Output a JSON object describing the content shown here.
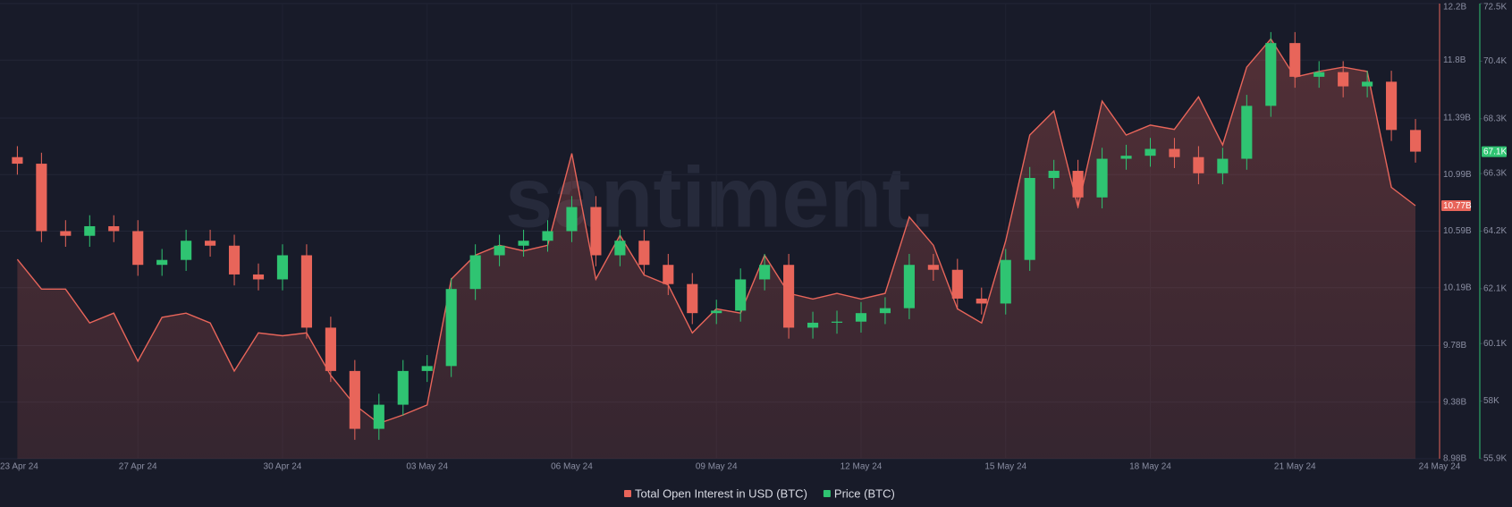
{
  "chart_data": {
    "type": "combo",
    "watermark": "santiment.",
    "grid": true,
    "x": [
      1.5,
      2,
      2.5,
      3,
      3.5,
      4,
      4.5,
      5,
      5.5,
      6,
      6.5,
      7,
      7.5,
      8,
      8.5,
      9,
      9.5,
      10,
      10.5,
      11,
      11.5,
      12,
      12.5,
      13,
      13.5,
      14,
      14.5,
      15,
      15.5,
      16,
      16.5,
      17,
      17.5,
      18,
      18.5,
      19,
      19.5,
      20,
      20.5,
      21,
      21.5,
      22,
      22.5,
      23,
      23.5,
      24,
      24.5,
      25,
      25.5,
      26,
      26.5,
      27,
      27.5,
      28,
      28.5,
      29,
      29.5,
      30,
      30.5
    ],
    "xlim": [
      1.14,
      31
    ],
    "xticks": [
      {
        "value": 1.14,
        "label": "23 Apr 24"
      },
      {
        "value": 4,
        "label": "27 Apr 24"
      },
      {
        "value": 7,
        "label": "30 Apr 24"
      },
      {
        "value": 10,
        "label": "03 May 24"
      },
      {
        "value": 13,
        "label": "06 May 24"
      },
      {
        "value": 16,
        "label": "09 May 24"
      },
      {
        "value": 19,
        "label": "12 May 24"
      },
      {
        "value": 22,
        "label": "15 May 24"
      },
      {
        "value": 25,
        "label": "18 May 24"
      },
      {
        "value": 28,
        "label": "21 May 24"
      },
      {
        "value": 31,
        "label": "24 May 24"
      }
    ],
    "ylim": [
      8.98,
      12.2
    ],
    "yticks": [
      {
        "value": 8.98,
        "label": "8.98B"
      },
      {
        "value": 9.38,
        "label": "9.38B"
      },
      {
        "value": 9.78,
        "label": "9.78B"
      },
      {
        "value": 10.19,
        "label": "10.19B"
      },
      {
        "value": 10.59,
        "label": "10.59B"
      },
      {
        "value": 10.99,
        "label": "10.99B"
      },
      {
        "value": 11.39,
        "label": "11.39B"
      },
      {
        "value": 11.8,
        "label": "11.8B"
      },
      {
        "value": 12.2,
        "label": "12.2B"
      }
    ],
    "y2lim": [
      55.9,
      72.5
    ],
    "y2ticks": [
      {
        "value": 55.9,
        "label": "55.9K"
      },
      {
        "value": 58,
        "label": "58K"
      },
      {
        "value": 60.1,
        "label": "60.1K"
      },
      {
        "value": 62.1,
        "label": "62.1K"
      },
      {
        "value": 64.2,
        "label": "64.2K"
      },
      {
        "value": 66.3,
        "label": "66.3K"
      },
      {
        "value": 68.3,
        "label": "68.3K"
      },
      {
        "value": 70.4,
        "label": "70.4K"
      },
      {
        "value": 72.5,
        "label": "72.5K"
      }
    ],
    "series": [
      {
        "name": "Total Open Interest in USD (BTC)",
        "type": "area",
        "color": "#e8655a",
        "last_label": "10.77B",
        "values": [
          10.39,
          10.18,
          10.18,
          9.94,
          10.01,
          9.67,
          9.98,
          10.01,
          9.94,
          9.6,
          9.87,
          9.85,
          9.87,
          9.57,
          9.36,
          9.23,
          9.29,
          9.36,
          10.25,
          10.42,
          10.49,
          10.45,
          10.49,
          11.14,
          10.25,
          10.56,
          10.28,
          10.21,
          9.87,
          10.04,
          10.01,
          10.42,
          10.15,
          10.11,
          10.15,
          10.11,
          10.15,
          10.69,
          10.49,
          10.04,
          9.94,
          10.52,
          11.27,
          11.44,
          10.76,
          11.51,
          11.27,
          11.34,
          11.31,
          11.54,
          11.2,
          11.75,
          11.95,
          11.68,
          11.72,
          11.75,
          11.72,
          10.9,
          10.77
        ]
      },
      {
        "name": "Price (BTC)",
        "type": "candlestick",
        "axis": "y2",
        "color": "#2fc472",
        "down_color": "#e8655a",
        "last_label": "67.1K",
        "open": [
          66.9,
          66.66,
          64.2,
          64.03,
          64.38,
          64.2,
          62.97,
          63.15,
          63.85,
          63.67,
          62.62,
          62.44,
          63.32,
          60.68,
          59.1,
          56.99,
          57.87,
          59.1,
          59.28,
          62.09,
          63.32,
          63.67,
          63.85,
          64.2,
          65.08,
          63.32,
          63.85,
          62.97,
          62.27,
          61.21,
          61.3,
          62.44,
          62.97,
          60.68,
          60.86,
          60.9,
          61.21,
          61.39,
          62.97,
          62.79,
          61.74,
          61.56,
          63.15,
          66.14,
          66.4,
          65.43,
          66.84,
          66.95,
          67.2,
          66.9,
          66.31,
          66.84,
          68.77,
          71.06,
          69.83,
          70.0,
          69.48,
          69.65,
          67.89
        ],
        "high": [
          67.3,
          67.06,
          64.6,
          64.78,
          64.78,
          64.6,
          63.55,
          64.25,
          64.25,
          64.07,
          63.02,
          63.72,
          63.72,
          61.08,
          59.5,
          58.27,
          59.5,
          59.68,
          62.49,
          63.72,
          64.07,
          64.25,
          64.6,
          65.48,
          65.48,
          64.25,
          64.25,
          63.37,
          62.67,
          61.7,
          62.84,
          63.37,
          63.37,
          61.26,
          61.3,
          61.61,
          61.79,
          63.37,
          63.37,
          63.19,
          62.14,
          63.55,
          66.54,
          66.8,
          66.8,
          67.24,
          67.35,
          67.6,
          67.6,
          67.3,
          67.24,
          69.17,
          71.46,
          71.46,
          70.4,
          70.4,
          70.05,
          70.05,
          68.29
        ],
        "low": [
          66.26,
          63.8,
          63.63,
          63.63,
          63.8,
          62.57,
          62.57,
          62.75,
          63.27,
          62.22,
          62.04,
          62.04,
          60.28,
          58.7,
          56.59,
          56.59,
          57.47,
          58.7,
          58.88,
          61.69,
          62.92,
          63.27,
          63.45,
          63.8,
          62.92,
          62.92,
          62.57,
          61.87,
          60.81,
          60.81,
          60.9,
          62.04,
          60.28,
          60.28,
          60.46,
          60.5,
          60.81,
          60.99,
          62.39,
          61.34,
          61.16,
          61.16,
          62.75,
          65.74,
          65.03,
          65.03,
          66.44,
          66.55,
          66.5,
          65.91,
          65.91,
          66.44,
          68.37,
          69.43,
          69.43,
          69.08,
          69.08,
          67.49,
          66.7
        ],
        "close": [
          66.66,
          64.2,
          64.03,
          64.38,
          64.2,
          62.97,
          63.15,
          63.85,
          63.67,
          62.62,
          62.44,
          63.32,
          60.68,
          59.1,
          56.99,
          57.87,
          59.1,
          59.28,
          62.09,
          63.32,
          63.67,
          63.85,
          64.2,
          65.08,
          63.32,
          63.85,
          62.97,
          62.27,
          61.21,
          61.3,
          62.44,
          62.97,
          60.68,
          60.86,
          60.9,
          61.21,
          61.39,
          62.97,
          62.79,
          61.74,
          61.56,
          63.15,
          66.14,
          66.4,
          65.43,
          66.84,
          66.95,
          67.2,
          66.9,
          66.31,
          66.84,
          68.77,
          71.06,
          69.83,
          70.0,
          69.48,
          69.65,
          67.89,
          67.1
        ]
      }
    ]
  }
}
